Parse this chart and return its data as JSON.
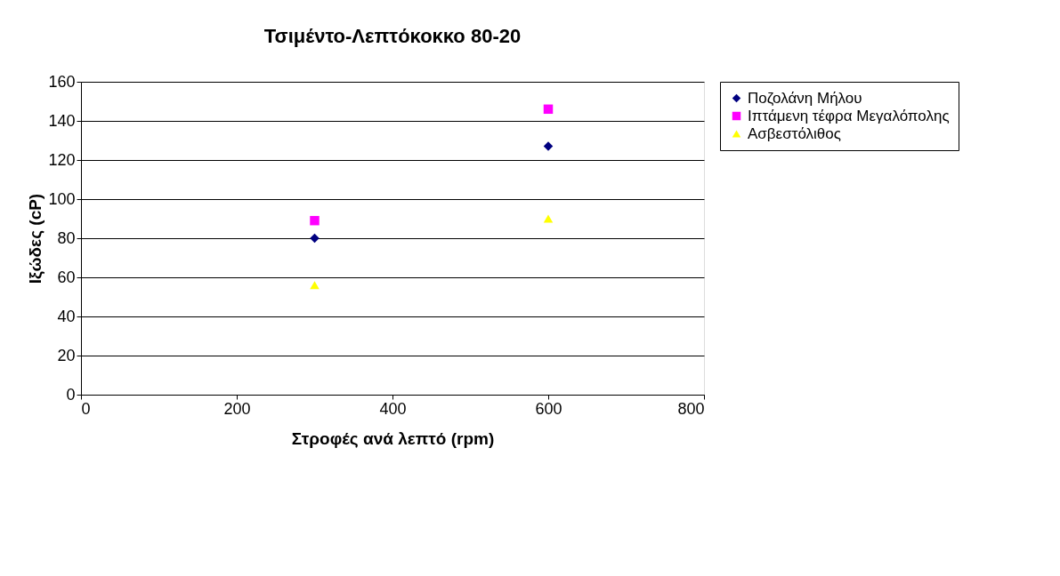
{
  "chart_data": {
    "type": "scatter",
    "title": "Τσιμέντο-Λεπτόκοκκο  80-20",
    "xlabel": "Στροφές ανά λεπτό (rpm)",
    "ylabel": "Ιξώδες (cP)",
    "x": [
      300,
      600
    ],
    "series": [
      {
        "name": "Ποζολάνη Μήλου",
        "color": "#000080",
        "marker": "diamond",
        "values": [
          80,
          127
        ]
      },
      {
        "name": "Ιπτάμενη τέφρα Μεγαλόπολης",
        "color": "#ff00ff",
        "marker": "square",
        "values": [
          89,
          146
        ]
      },
      {
        "name": "Ασβεστόλιθος",
        "color": "#ffff00",
        "marker": "triangle",
        "values": [
          56,
          90
        ]
      }
    ],
    "xlim": [
      0,
      800
    ],
    "xticks": [
      0,
      200,
      400,
      600,
      800
    ],
    "ylim": [
      0,
      160
    ],
    "yticks": [
      0,
      20,
      40,
      60,
      80,
      100,
      120,
      140,
      160
    ],
    "grid": "y",
    "legend": "right"
  }
}
